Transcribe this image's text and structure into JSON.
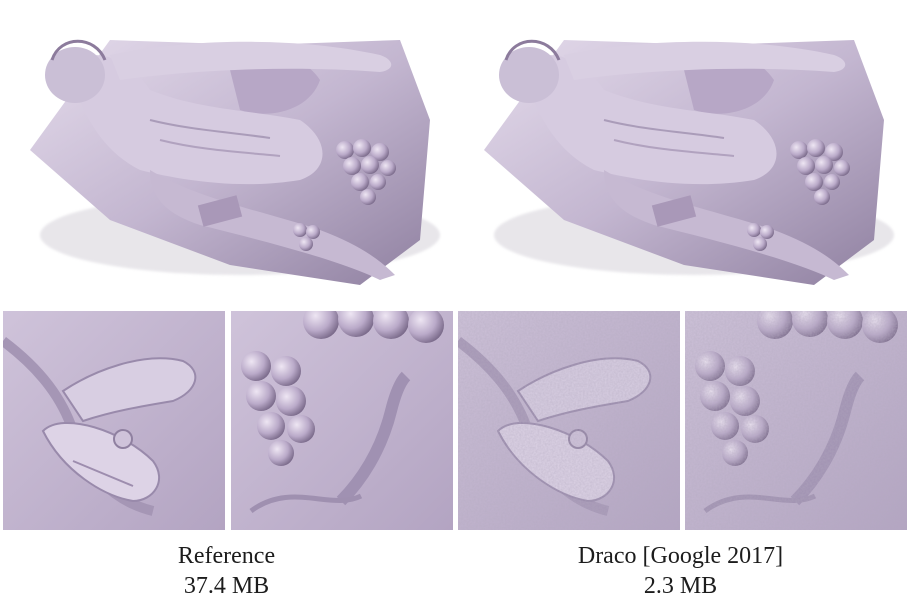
{
  "columns": [
    {
      "method": "Reference",
      "size": "37.4 MB",
      "surface": "smooth"
    },
    {
      "method": "Draco [Google 2017]",
      "size": "2.3 MB",
      "surface": "noisy"
    }
  ],
  "colors": {
    "sculpture_base": "#bfb1cc",
    "sculpture_light": "#e6ddec",
    "sculpture_shadow": "#7c6d8a",
    "background": "#ffffff",
    "caption_text": "#1c1c1c"
  }
}
